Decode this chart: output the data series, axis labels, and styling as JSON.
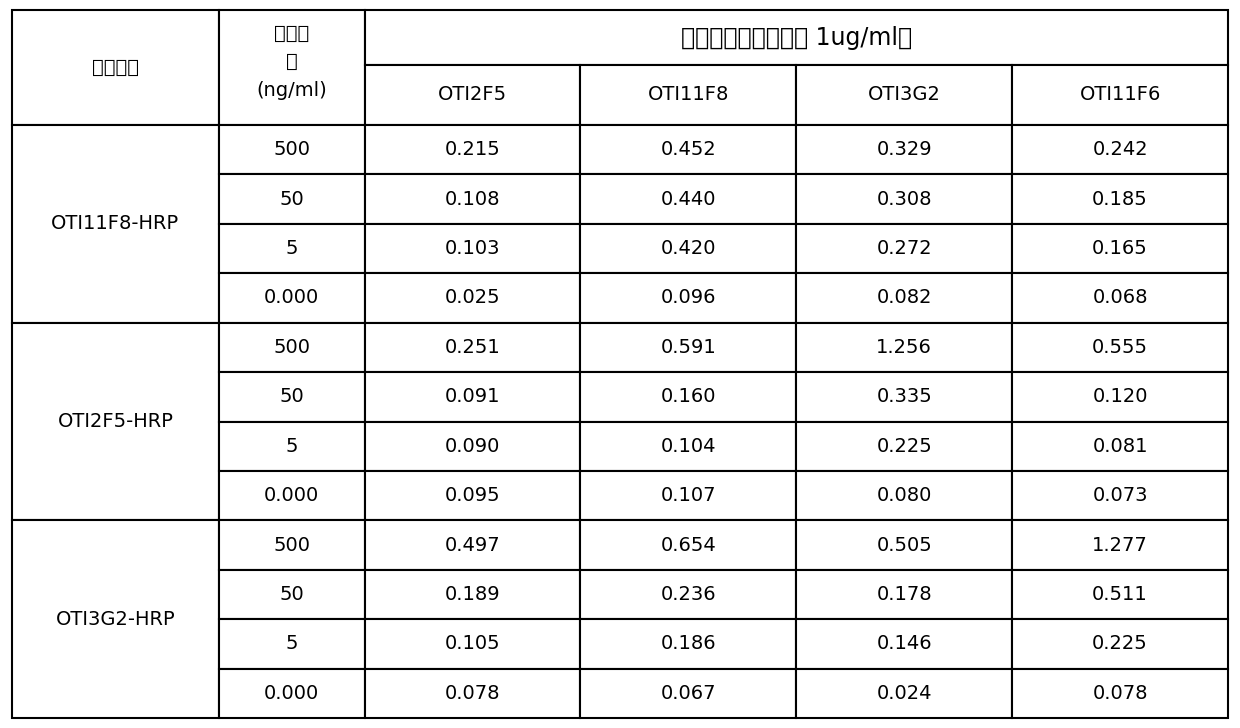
{
  "header_col0": "检测抗体",
  "header_col1_lines": [
    "检测抗",
    "原",
    "(ng/ml)"
  ],
  "header_top_span": "包被抗体（包被浓度 1ug/ml）",
  "header_cols": [
    "OTI2F5",
    "OTI11F8",
    "OTI3G2",
    "OTI11F6"
  ],
  "row_groups": [
    {
      "label": "OTI11F8-HRP",
      "rows": [
        {
          "antigen": "500",
          "vals": [
            "0.215",
            "0.452",
            "0.329",
            "0.242"
          ]
        },
        {
          "antigen": "50",
          "vals": [
            "0.108",
            "0.440",
            "0.308",
            "0.185"
          ]
        },
        {
          "antigen": "5",
          "vals": [
            "0.103",
            "0.420",
            "0.272",
            "0.165"
          ]
        },
        {
          "antigen": "0.000",
          "vals": [
            "0.025",
            "0.096",
            "0.082",
            "0.068"
          ]
        }
      ]
    },
    {
      "label": "OTI2F5-HRP",
      "rows": [
        {
          "antigen": "500",
          "vals": [
            "0.251",
            "0.591",
            "1.256",
            "0.555"
          ]
        },
        {
          "antigen": "50",
          "vals": [
            "0.091",
            "0.160",
            "0.335",
            "0.120"
          ]
        },
        {
          "antigen": "5",
          "vals": [
            "0.090",
            "0.104",
            "0.225",
            "0.081"
          ]
        },
        {
          "antigen": "0.000",
          "vals": [
            "0.095",
            "0.107",
            "0.080",
            "0.073"
          ]
        }
      ]
    },
    {
      "label": "OTI3G2-HRP",
      "rows": [
        {
          "antigen": "500",
          "vals": [
            "0.497",
            "0.654",
            "0.505",
            "1.277"
          ]
        },
        {
          "antigen": "50",
          "vals": [
            "0.189",
            "0.236",
            "0.178",
            "0.511"
          ]
        },
        {
          "antigen": "5",
          "vals": [
            "0.105",
            "0.186",
            "0.146",
            "0.225"
          ]
        },
        {
          "antigen": "0.000",
          "vals": [
            "0.078",
            "0.067",
            "0.024",
            "0.078"
          ]
        }
      ]
    }
  ],
  "bg_color": "#ffffff",
  "line_color": "#000000",
  "font_size_data": 14,
  "font_size_header": 14,
  "font_size_top_header": 17
}
